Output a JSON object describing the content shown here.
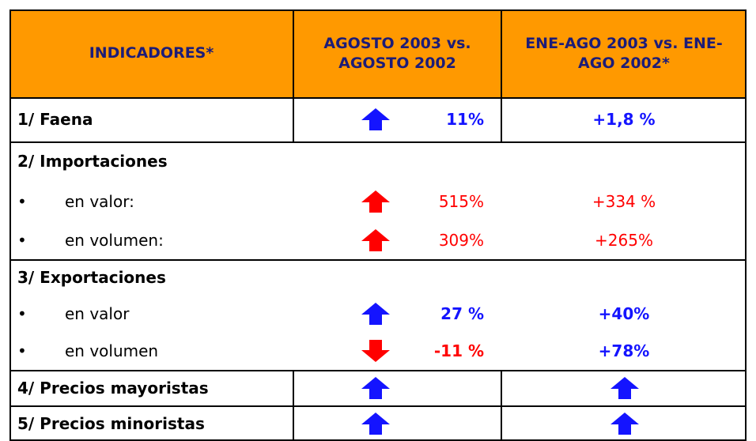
{
  "header": [
    "INDICADORES*",
    "AGOSTO 2003 vs. AGOSTO 2002",
    "ENE-AGO 2003 vs. ENE-AGO 2002*"
  ],
  "sections": [
    {
      "label": "1/ Faena",
      "arrow": "up",
      "arrow_color": "#1414ff",
      "change": "11%",
      "cumulative": "+1,8 %",
      "color": "#1414ff",
      "bold": true
    },
    {
      "label": "2/ Importaciones",
      "items": [
        {
          "label": "en valor:",
          "arrow": "up",
          "arrow_color": "#ff0000",
          "change": "515%",
          "cumulative": "+334 %",
          "color": "#ff0000",
          "bold": false
        },
        {
          "label": "en volumen:",
          "arrow": "up",
          "arrow_color": "#ff0000",
          "change": "309%",
          "cumulative": "+265%",
          "color": "#ff0000",
          "bold": false
        }
      ]
    },
    {
      "label": "3/ Exportaciones",
      "items": [
        {
          "label": "en valor",
          "arrow": "up",
          "arrow_color": "#1414ff",
          "change": "27 %",
          "cumulative": "+40%",
          "color": "#1414ff",
          "cumulative_color": "#1414ff",
          "bold": true
        },
        {
          "label": "en volumen",
          "arrow": "down",
          "arrow_color": "#ff0000",
          "change": "-11 %",
          "cumulative": "+78%",
          "color": "#ff0000",
          "cumulative_color": "#1414ff",
          "bold": true
        }
      ]
    },
    {
      "label": "4/ Precios mayoristas",
      "arrow": "up",
      "arrow_color": "#1414ff",
      "cumulative_arrow": "up"
    },
    {
      "label": "5/ Precios minoristas",
      "arrow": "up",
      "arrow_color": "#1414ff",
      "cumulative_arrow": "up"
    }
  ]
}
